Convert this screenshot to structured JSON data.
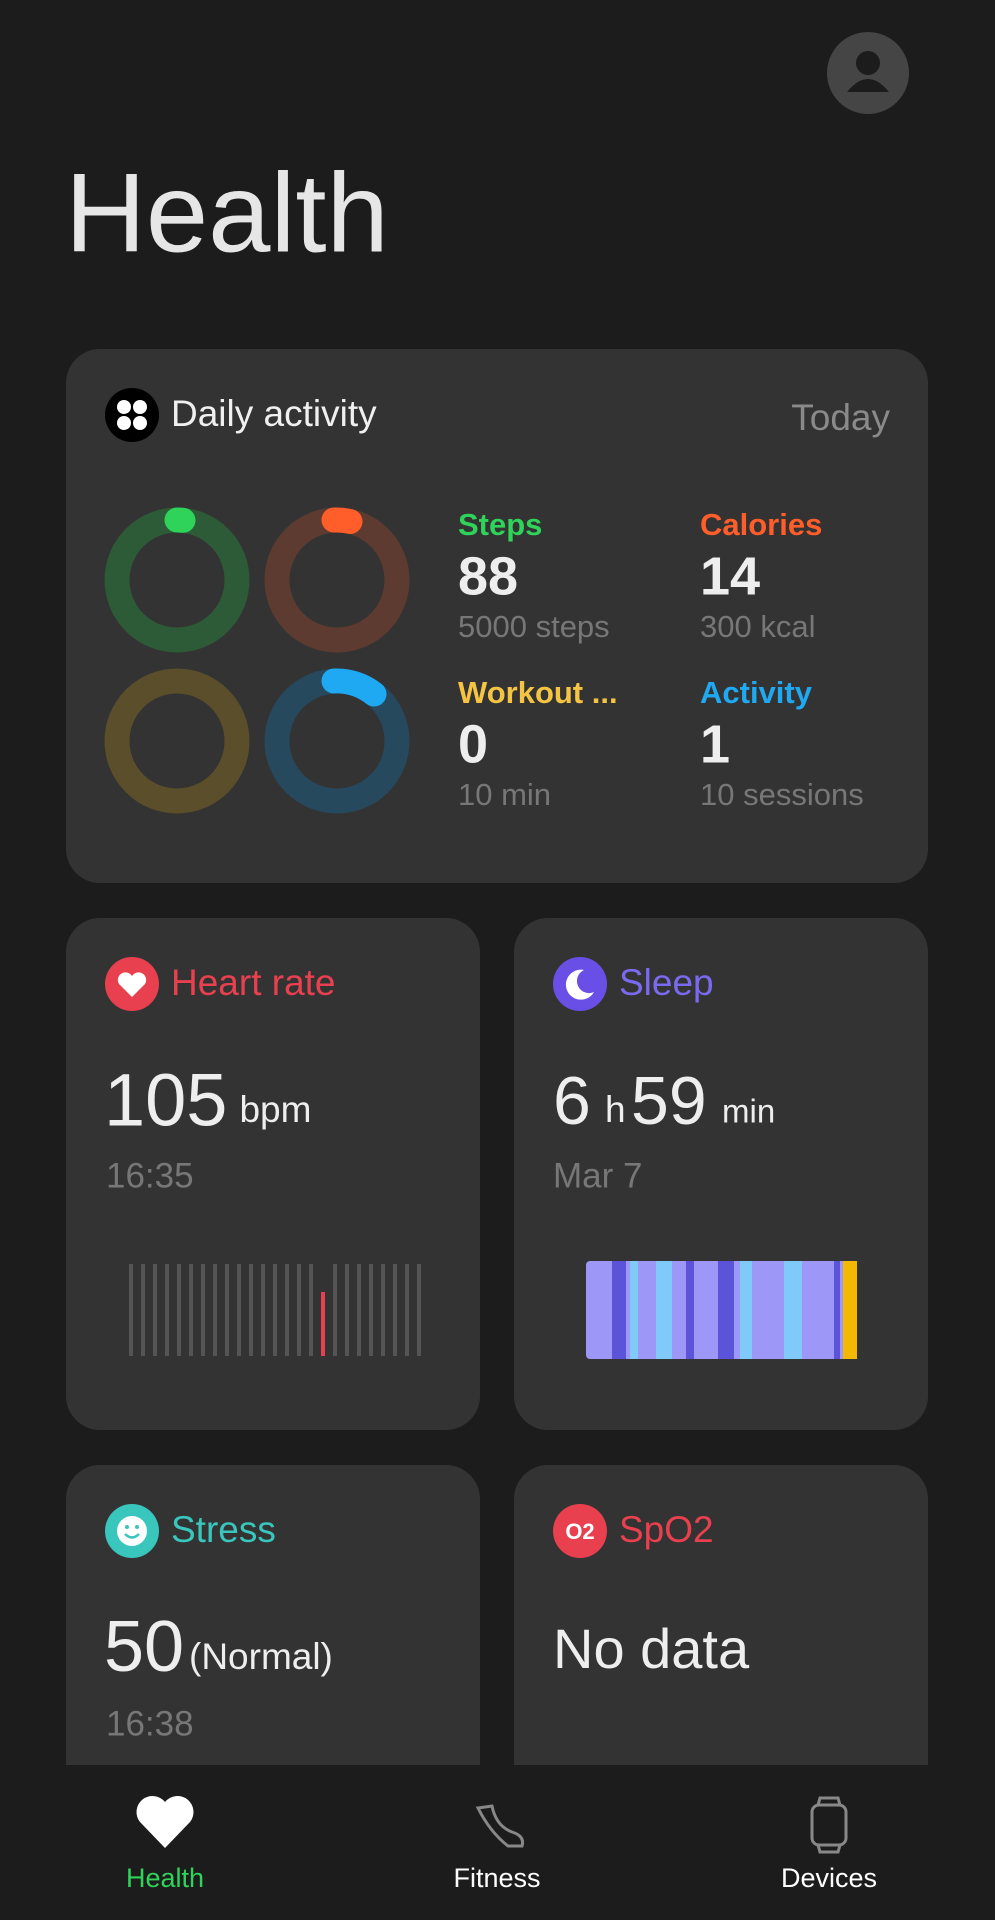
{
  "header": {
    "title": "Health"
  },
  "activity": {
    "title": "Daily activity",
    "period": "Today",
    "stats": [
      {
        "label": "Steps",
        "value": "88",
        "target": "5000 steps"
      },
      {
        "label": "Calories",
        "value": "14",
        "target": "300 kcal"
      },
      {
        "label": "Workout ...",
        "value": "0",
        "target": "10 min"
      },
      {
        "label": "Activity",
        "value": "1",
        "target": "10 sessions"
      }
    ]
  },
  "heart_rate": {
    "title": "Heart rate",
    "value": "105",
    "unit": "bpm",
    "time": "16:35"
  },
  "sleep": {
    "title": "Sleep",
    "hours": "6",
    "hours_unit": "h",
    "minutes": "59",
    "minutes_unit": "min",
    "date": "Mar 7"
  },
  "stress": {
    "title": "Stress",
    "value": "50",
    "status": "(Normal)",
    "time": "16:38"
  },
  "spo2": {
    "title": "SpO2",
    "icon": "O2",
    "status": "No data"
  },
  "nav": {
    "items": [
      "Health",
      "Fitness",
      "Devices"
    ]
  }
}
